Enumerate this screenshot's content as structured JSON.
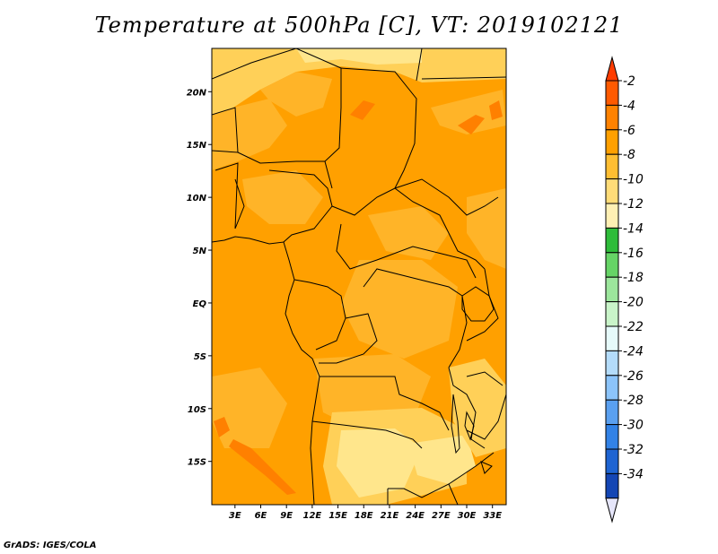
{
  "title": "Temperature at 500hPa [C], VT: 2019102121",
  "credit": "GrADS: IGES/COLA",
  "map": {
    "lat_ticks": [
      {
        "value": 20,
        "label": "20N"
      },
      {
        "value": 15,
        "label": "15N"
      },
      {
        "value": 10,
        "label": "10N"
      },
      {
        "value": 5,
        "label": "5N"
      },
      {
        "value": 0,
        "label": "EQ"
      },
      {
        "value": -5,
        "label": "5S"
      },
      {
        "value": -10,
        "label": "10S"
      },
      {
        "value": -15,
        "label": "15S"
      }
    ],
    "lon_ticks": [
      {
        "value": 3,
        "label": "3E"
      },
      {
        "value": 6,
        "label": "6E"
      },
      {
        "value": 9,
        "label": "9E"
      },
      {
        "value": 12,
        "label": "12E"
      },
      {
        "value": 15,
        "label": "15E"
      },
      {
        "value": 18,
        "label": "18E"
      },
      {
        "value": 21,
        "label": "21E"
      },
      {
        "value": 24,
        "label": "24E"
      },
      {
        "value": 27,
        "label": "27E"
      },
      {
        "value": 30,
        "label": "30E"
      },
      {
        "value": 33,
        "label": "33E"
      }
    ],
    "colors": {
      "base": "#ffa000",
      "warm": "#ff8000",
      "cool_orange": "#ffb428",
      "light": "#ffd058",
      "pale": "#ffe68c",
      "border": "#000000"
    }
  },
  "colorbar": {
    "levels": [
      "-2",
      "-4",
      "-6",
      "-8",
      "-10",
      "-12",
      "-14",
      "-16",
      "-18",
      "-20",
      "-22",
      "-24",
      "-26",
      "-28",
      "-30",
      "-32",
      "-34"
    ],
    "colors": [
      "#ff5a00",
      "#ff8200",
      "#ffa000",
      "#ffbe32",
      "#ffdc78",
      "#fff0b4",
      "#2fbc3a",
      "#66d466",
      "#9ce69c",
      "#c9f4c9",
      "#e6fafa",
      "#b4dcfa",
      "#8cc4fa",
      "#5aa0f0",
      "#3282e6",
      "#1e64d2",
      "#1446b4",
      "#0f1e8c"
    ],
    "top_arrow_color": "#ff3c00",
    "bottom_arrow_color": "#e6e6fa"
  }
}
